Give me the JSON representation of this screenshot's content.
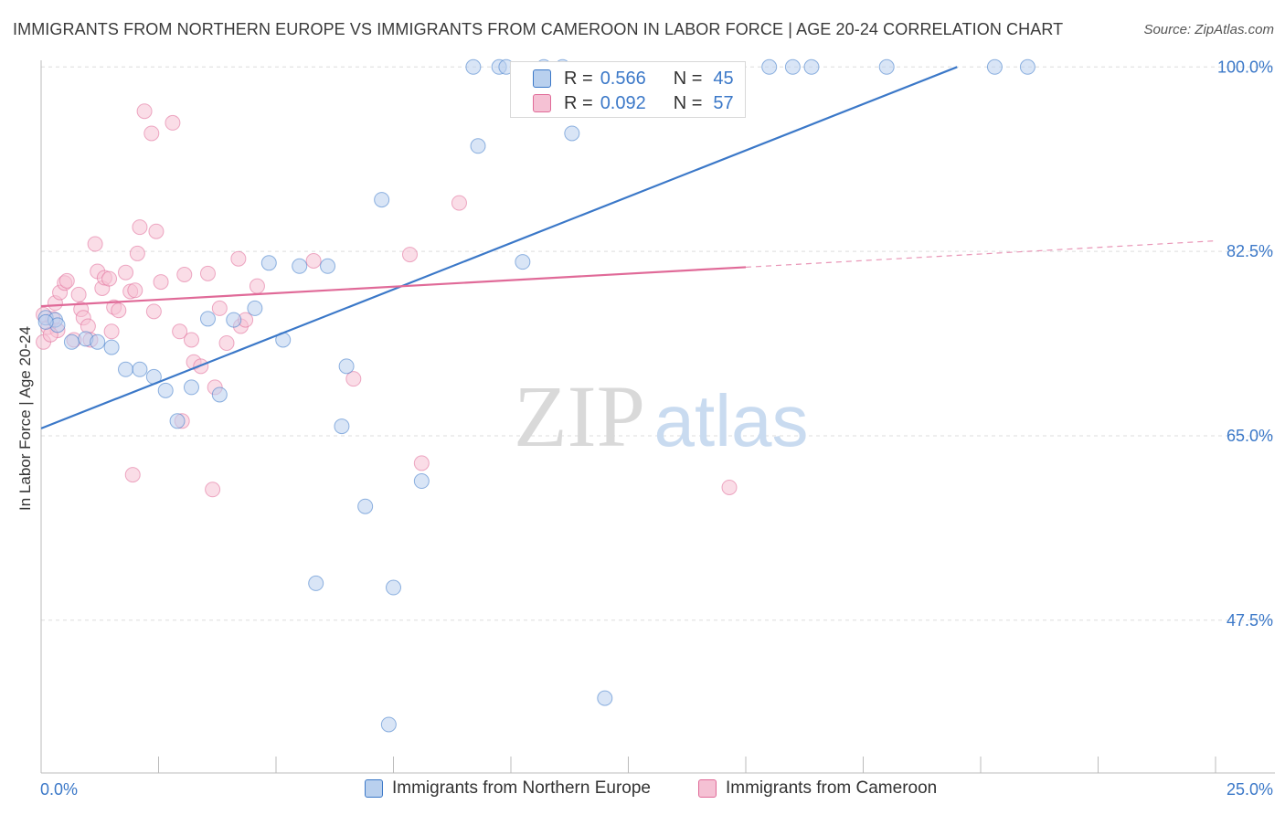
{
  "title": "IMMIGRANTS FROM NORTHERN EUROPE VS IMMIGRANTS FROM CAMEROON IN LABOR FORCE | AGE 20-24 CORRELATION CHART",
  "source": "Source: ZipAtlas.com",
  "watermark": {
    "zip": "ZIP",
    "atlas": "atlas"
  },
  "colors": {
    "blue": "#3b78c8",
    "blue_fill": "#b9d0ee",
    "pink": "#e06a98",
    "pink_fill": "#f5c1d4",
    "grid": "#dddddd"
  },
  "stats": {
    "blue": {
      "r_label": "R =",
      "r": "0.566",
      "n_label": "N =",
      "n": "45"
    },
    "pink": {
      "r_label": "R =",
      "r": "0.092",
      "n_label": "N =",
      "n": "57"
    }
  },
  "chart_data": {
    "type": "scatter",
    "xlabel": "",
    "ylabel": "In Labor Force | Age 20-24",
    "xlim": [
      0,
      25
    ],
    "ylim": [
      33,
      101.5
    ],
    "x_tick_labels": [
      {
        "value": 0,
        "label": "0.0%"
      },
      {
        "value": 25,
        "label": "25.0%"
      }
    ],
    "y_ticks": [
      {
        "value": 100,
        "label": "100.0%"
      },
      {
        "value": 82.5,
        "label": "82.5%"
      },
      {
        "value": 65,
        "label": "65.0%"
      },
      {
        "value": 47.5,
        "label": "47.5%"
      }
    ],
    "grid": "horizontal dashed",
    "legend": "bottom",
    "series": [
      {
        "name": "Immigrants from Northern Europe",
        "color": "#3b78c8",
        "trend": {
          "x0": 0,
          "y0": 65.7,
          "x1": 19.5,
          "y1": 100.0,
          "dashed_to": null
        },
        "points": [
          [
            0.1,
            76.2
          ],
          [
            0.3,
            76.0
          ],
          [
            0.35,
            75.5
          ],
          [
            0.65,
            73.9
          ],
          [
            0.95,
            74.2
          ],
          [
            1.2,
            73.9
          ],
          [
            1.5,
            73.4
          ],
          [
            1.8,
            71.3
          ],
          [
            2.1,
            71.3
          ],
          [
            2.4,
            70.6
          ],
          [
            2.65,
            69.3
          ],
          [
            2.9,
            66.4
          ],
          [
            3.2,
            69.6
          ],
          [
            3.55,
            76.1
          ],
          [
            3.8,
            68.9
          ],
          [
            4.1,
            76.0
          ],
          [
            4.55,
            77.1
          ],
          [
            4.85,
            81.4
          ],
          [
            5.15,
            74.1
          ],
          [
            5.5,
            81.1
          ],
          [
            5.85,
            51.0
          ],
          [
            6.1,
            81.1
          ],
          [
            6.4,
            65.9
          ],
          [
            6.5,
            71.6
          ],
          [
            6.9,
            58.3
          ],
          [
            7.25,
            87.4
          ],
          [
            7.4,
            37.6
          ],
          [
            7.5,
            50.6
          ],
          [
            8.1,
            60.7
          ],
          [
            9.2,
            100.0
          ],
          [
            9.3,
            92.5
          ],
          [
            9.75,
            100.0
          ],
          [
            9.9,
            100.0
          ],
          [
            10.25,
            81.5
          ],
          [
            10.7,
            100.0
          ],
          [
            11.1,
            100.0
          ],
          [
            11.3,
            93.7
          ],
          [
            12.0,
            40.1
          ],
          [
            15.5,
            100.0
          ],
          [
            16.0,
            100.0
          ],
          [
            16.4,
            100.0
          ],
          [
            18.0,
            100.0
          ],
          [
            20.3,
            100.0
          ],
          [
            21.0,
            100.0
          ],
          [
            0.1,
            75.8
          ]
        ]
      },
      {
        "name": "Immigrants from Cameroon",
        "color": "#e06a98",
        "trend": {
          "x0": 0,
          "y0": 77.3,
          "x1": 15.0,
          "y1": 81.0,
          "dashed_to": {
            "x": 25,
            "y": 83.5
          }
        },
        "points": [
          [
            0.05,
            73.9
          ],
          [
            0.15,
            75.3
          ],
          [
            0.25,
            76.1
          ],
          [
            0.3,
            77.6
          ],
          [
            0.35,
            75.0
          ],
          [
            0.4,
            78.6
          ],
          [
            0.5,
            79.5
          ],
          [
            0.55,
            79.7
          ],
          [
            0.7,
            74.1
          ],
          [
            0.8,
            78.4
          ],
          [
            0.85,
            77.0
          ],
          [
            0.9,
            76.2
          ],
          [
            1.0,
            75.4
          ],
          [
            1.05,
            74.1
          ],
          [
            1.15,
            83.2
          ],
          [
            1.2,
            80.6
          ],
          [
            1.3,
            79.0
          ],
          [
            1.35,
            80.0
          ],
          [
            1.45,
            79.9
          ],
          [
            1.5,
            74.9
          ],
          [
            1.55,
            77.2
          ],
          [
            1.65,
            76.9
          ],
          [
            1.8,
            80.5
          ],
          [
            1.9,
            78.7
          ],
          [
            1.95,
            61.3
          ],
          [
            2.0,
            78.8
          ],
          [
            2.05,
            82.3
          ],
          [
            2.1,
            84.8
          ],
          [
            2.2,
            95.8
          ],
          [
            2.35,
            93.7
          ],
          [
            2.4,
            76.8
          ],
          [
            2.45,
            84.4
          ],
          [
            2.55,
            79.6
          ],
          [
            2.8,
            94.7
          ],
          [
            2.95,
            74.9
          ],
          [
            3.0,
            66.4
          ],
          [
            3.05,
            80.3
          ],
          [
            3.2,
            74.1
          ],
          [
            3.25,
            72.0
          ],
          [
            3.4,
            71.6
          ],
          [
            3.55,
            80.4
          ],
          [
            3.65,
            59.9
          ],
          [
            3.7,
            69.6
          ],
          [
            3.8,
            77.1
          ],
          [
            3.95,
            73.8
          ],
          [
            4.2,
            81.8
          ],
          [
            4.25,
            75.4
          ],
          [
            4.35,
            76.0
          ],
          [
            4.6,
            79.2
          ],
          [
            5.8,
            81.6
          ],
          [
            6.65,
            70.4
          ],
          [
            7.85,
            82.2
          ],
          [
            8.1,
            62.4
          ],
          [
            8.9,
            87.1
          ],
          [
            14.65,
            60.1
          ],
          [
            0.05,
            76.5
          ],
          [
            0.2,
            74.6
          ]
        ]
      }
    ]
  }
}
